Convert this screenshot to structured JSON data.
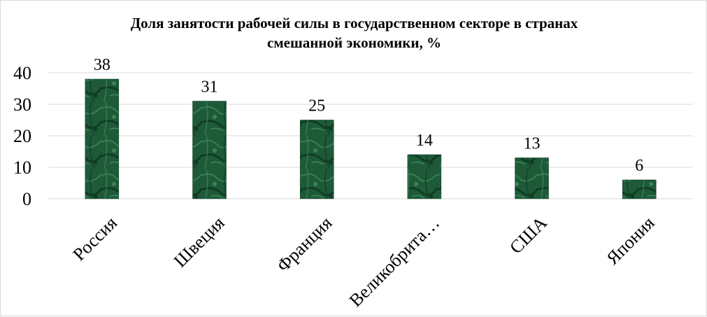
{
  "chart_data": {
    "type": "bar",
    "title": [
      "Доля занятости рабочей силы в государственном секторе в странах",
      "смешанной экономики, %"
    ],
    "categories": [
      "Россия",
      "Швеция",
      "Франция",
      "Великобрита…",
      "США",
      "Япония"
    ],
    "values": [
      38,
      31,
      25,
      14,
      13,
      6
    ],
    "data_labels": [
      "38",
      "31",
      "25",
      "14",
      "13",
      "6"
    ],
    "yticks": [
      "0",
      "10",
      "20",
      "30",
      "40"
    ],
    "ylim": [
      0,
      40
    ],
    "grid": true,
    "legend": "none",
    "bar_color": "#1f5e3a",
    "bar_color_dark": "#0d3a22",
    "bar_color_light": "#3c8a5e"
  }
}
